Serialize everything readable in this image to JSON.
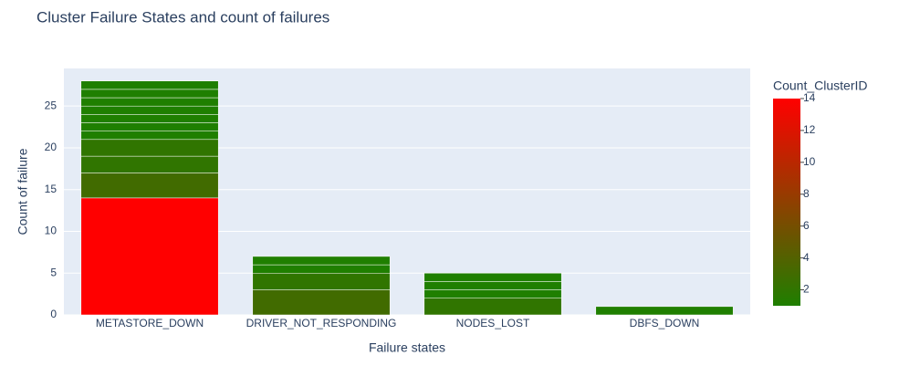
{
  "chart_data": {
    "type": "stacked_bar",
    "title": "Cluster Failure States and count of failures",
    "x_label": "Failure states",
    "y_label": "Count of failure",
    "categories": [
      "METASTORE_DOWN",
      "DRIVER_NOT_RESPONDING",
      "NODES_LOST",
      "DBFS_DOWN"
    ],
    "segments": [
      [
        14,
        3,
        2,
        2,
        1,
        1,
        1,
        1,
        1,
        1,
        1
      ],
      [
        3,
        2,
        1,
        1
      ],
      [
        2,
        1,
        1,
        1
      ],
      [
        1
      ]
    ],
    "ylim": [
      0,
      29.5
    ],
    "yticks": [
      0,
      5,
      10,
      15,
      20,
      25
    ],
    "grid": true,
    "colorbar": {
      "title": "Count_ClusterID",
      "range": [
        1,
        14
      ],
      "ticks": [
        2,
        4,
        6,
        8,
        10,
        12,
        14
      ],
      "colorscale": [
        "#1f7f00",
        "#ff0000"
      ]
    }
  }
}
